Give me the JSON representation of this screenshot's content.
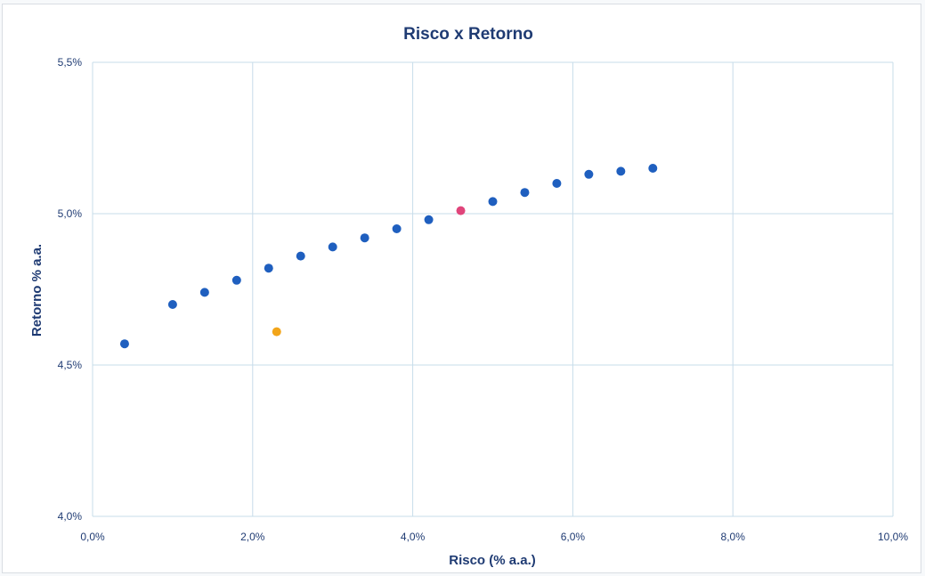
{
  "chart_data": {
    "type": "scatter",
    "title": "Risco x Retorno",
    "xlabel": "Risco (% a.a.)",
    "ylabel": "Retorno % a.a.",
    "xlim": [
      0.0,
      10.0
    ],
    "ylim": [
      4.0,
      5.5
    ],
    "x_ticks": [
      "0,0%",
      "2,0%",
      "4,0%",
      "6,0%",
      "8,0%",
      "10,0%"
    ],
    "y_ticks": [
      "4,0%",
      "4,5%",
      "5,0%",
      "5,5%"
    ],
    "x_tick_values": [
      0,
      2,
      4,
      6,
      8,
      10
    ],
    "y_tick_values": [
      4.0,
      4.5,
      5.0,
      5.5
    ],
    "grid": true,
    "legend": "none",
    "series": [
      {
        "color": "#1f5fbf",
        "points": [
          {
            "x": 0.4,
            "y": 4.57
          },
          {
            "x": 1.0,
            "y": 4.7
          },
          {
            "x": 1.4,
            "y": 4.74
          },
          {
            "x": 1.8,
            "y": 4.78
          },
          {
            "x": 2.2,
            "y": 4.82
          },
          {
            "x": 2.6,
            "y": 4.86
          },
          {
            "x": 3.0,
            "y": 4.89
          },
          {
            "x": 3.4,
            "y": 4.92
          },
          {
            "x": 3.8,
            "y": 4.95
          },
          {
            "x": 4.2,
            "y": 4.98
          },
          {
            "x": 5.0,
            "y": 5.04
          },
          {
            "x": 5.4,
            "y": 5.07
          },
          {
            "x": 5.8,
            "y": 5.1
          },
          {
            "x": 6.2,
            "y": 5.13
          },
          {
            "x": 6.6,
            "y": 5.14
          },
          {
            "x": 7.0,
            "y": 5.15
          }
        ]
      },
      {
        "color": "#e0457b",
        "points": [
          {
            "x": 4.6,
            "y": 5.01
          }
        ]
      },
      {
        "color": "#f2a51a",
        "points": [
          {
            "x": 2.3,
            "y": 4.61
          }
        ]
      }
    ]
  }
}
